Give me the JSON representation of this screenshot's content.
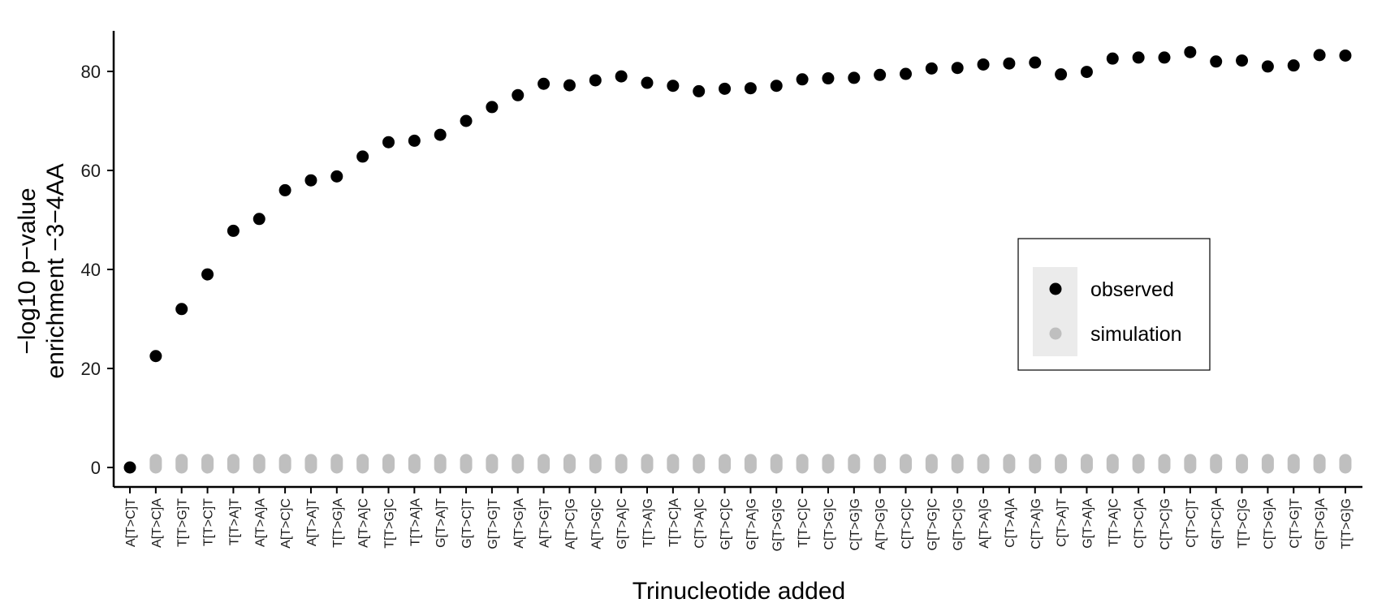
{
  "chart_data": {
    "type": "scatter",
    "title": "",
    "xlabel": "Trinucleotide added",
    "ylabel_lines": [
      "−log10 p−value",
      "enrichment −3−4AA"
    ],
    "ylim": [
      -4,
      88
    ],
    "yticks": [
      0,
      20,
      40,
      60,
      80
    ],
    "legend_position": "right",
    "grid": false,
    "categories": [
      "A[T>C]T",
      "A[T>C]A",
      "T[T>G]T",
      "T[T>C]T",
      "T[T>A]T",
      "A[T>A]A",
      "A[T>C]C",
      "A[T>A]T",
      "T[T>G]A",
      "A[T>A]C",
      "T[T>G]C",
      "T[T>A]A",
      "G[T>A]T",
      "G[T>C]T",
      "G[T>G]T",
      "A[T>G]A",
      "A[T>G]T",
      "A[T>C]G",
      "A[T>G]C",
      "G[T>A]C",
      "T[T>A]G",
      "T[T>C]A",
      "C[T>A]C",
      "G[T>C]C",
      "G[T>A]G",
      "G[T>G]G",
      "T[T>C]C",
      "C[T>G]C",
      "C[T>G]G",
      "A[T>G]G",
      "C[T>C]C",
      "G[T>G]C",
      "G[T>C]G",
      "A[T>A]G",
      "C[T>A]A",
      "C[T>A]G",
      "C[T>A]T",
      "G[T>A]A",
      "T[T>A]C",
      "C[T>C]A",
      "C[T>C]G",
      "C[T>C]T",
      "G[T>C]A",
      "T[T>C]G",
      "C[T>G]A",
      "C[T>G]T",
      "G[T>G]A",
      "T[T>G]G"
    ],
    "series": [
      {
        "name": "observed",
        "color": "#000000",
        "values": [
          0,
          22.5,
          32,
          39,
          47.8,
          50.2,
          56,
          58,
          58.8,
          62.8,
          65.7,
          66,
          67.2,
          70,
          72.8,
          75.2,
          77.5,
          77.2,
          78.2,
          79,
          77.7,
          77.1,
          76,
          76.5,
          76.6,
          77.1,
          78.4,
          78.6,
          78.7,
          79.3,
          79.5,
          80.6,
          80.7,
          81.4,
          81.6,
          81.8,
          79.4,
          79.9,
          82.6,
          82.8,
          82.8,
          83.9,
          82,
          82.2,
          81,
          81.2,
          83.3,
          83.2
        ]
      },
      {
        "name": "simulation",
        "color": "#bfbfbf",
        "range": [
          0,
          1.5
        ]
      }
    ]
  }
}
